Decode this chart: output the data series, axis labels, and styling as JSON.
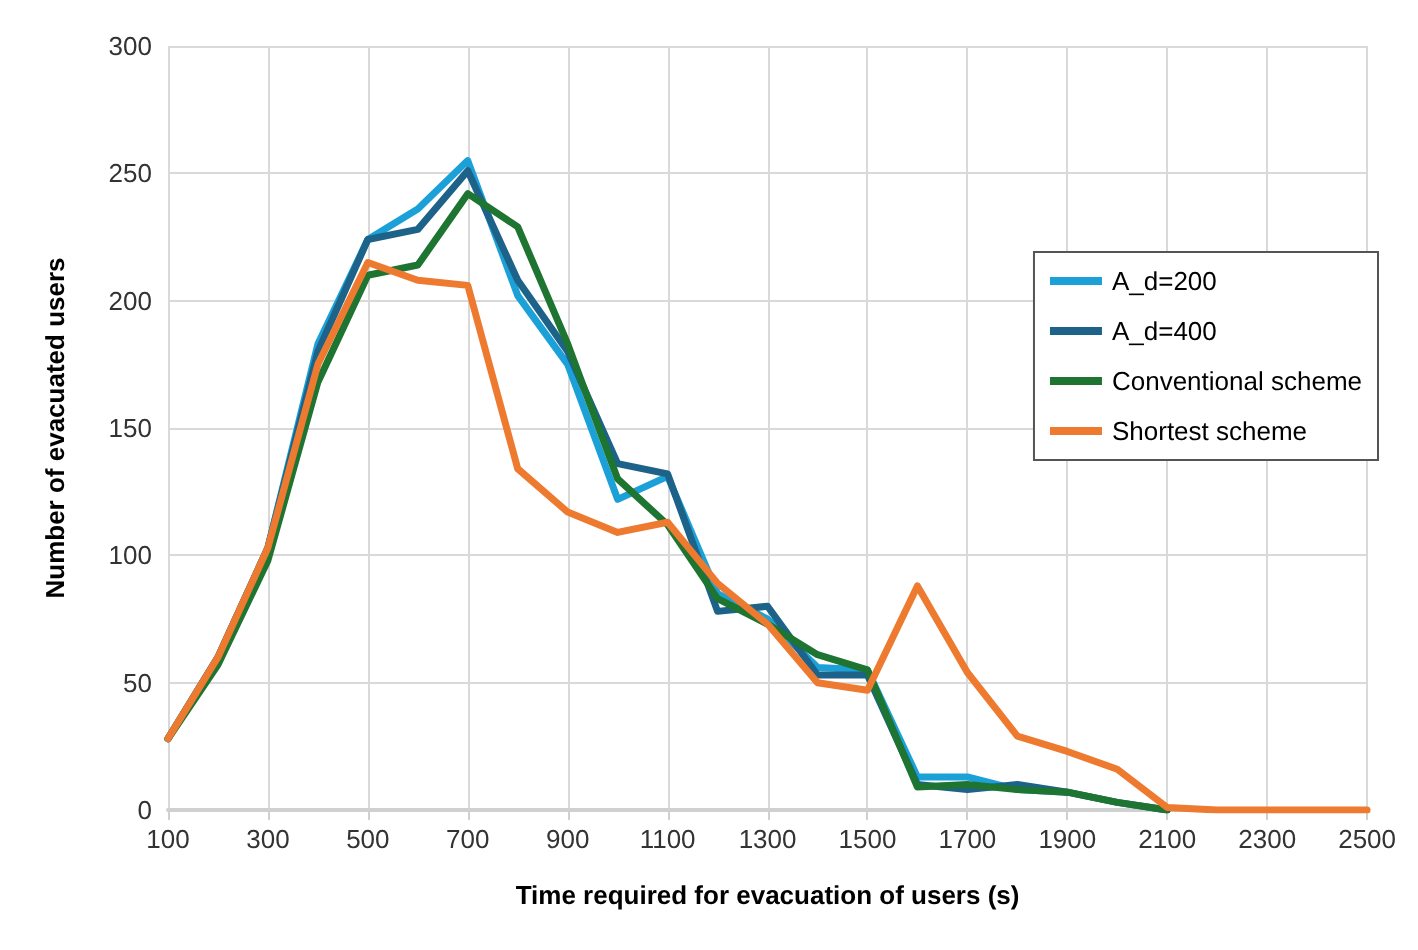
{
  "chart_data": {
    "type": "line",
    "xlabel": "Time required for evacuation of users (s)",
    "ylabel": "Number of evacuated users",
    "x": [
      100,
      200,
      300,
      400,
      500,
      600,
      700,
      800,
      900,
      1000,
      1100,
      1200,
      1300,
      1400,
      1500,
      1600,
      1700,
      1800,
      1900,
      2000,
      2100,
      2200,
      2300,
      2400,
      2500
    ],
    "series": [
      {
        "name": "A_d=200",
        "color": "#1ba1d8",
        "values": [
          28,
          60,
          103,
          183,
          224,
          236,
          255,
          202,
          175,
          122,
          131,
          85,
          75,
          56,
          55,
          13,
          13,
          8,
          7,
          null,
          null,
          null,
          null,
          null,
          null
        ]
      },
      {
        "name": "A_d=400",
        "color": "#1c6289",
        "values": [
          28,
          60,
          103,
          180,
          224,
          228,
          251,
          208,
          180,
          136,
          132,
          78,
          80,
          53,
          53,
          10,
          8,
          10,
          7,
          3,
          0,
          null,
          null,
          null,
          null
        ]
      },
      {
        "name": "Conventional scheme",
        "color": "#1e7431",
        "values": [
          28,
          57,
          98,
          168,
          210,
          214,
          242,
          229,
          183,
          130,
          112,
          83,
          73,
          61,
          55,
          9,
          10,
          8,
          7,
          3,
          0,
          null,
          null,
          null,
          null
        ]
      },
      {
        "name": "Shortest scheme",
        "color": "#ee7a30",
        "values": [
          28,
          60,
          103,
          175,
          215,
          208,
          206,
          134,
          117,
          109,
          113,
          89,
          73,
          50,
          47,
          88,
          54,
          29,
          23,
          16,
          1,
          0,
          0,
          0,
          0
        ]
      }
    ],
    "xlim": [
      100,
      2500
    ],
    "xticks": [
      100,
      300,
      500,
      700,
      900,
      1100,
      1300,
      1500,
      1700,
      1900,
      2100,
      2300,
      2500
    ],
    "ylim": [
      0,
      300
    ],
    "yticks": [
      0,
      50,
      100,
      150,
      200,
      250,
      300
    ],
    "grid": true,
    "legend": "right",
    "marker": "none",
    "line_style": "solid"
  }
}
